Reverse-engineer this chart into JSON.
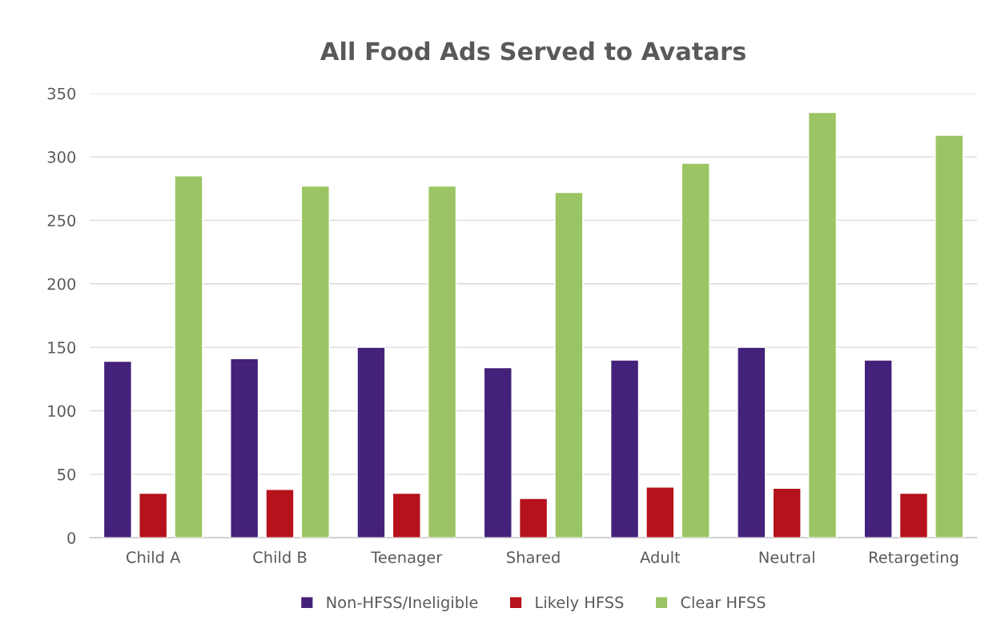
{
  "chart_data": {
    "type": "bar",
    "title": "All Food Ads Served to Avatars",
    "categories": [
      "Child A",
      "Child B",
      "Teenager",
      "Shared",
      "Adult",
      "Neutral",
      "Retargeting"
    ],
    "series": [
      {
        "name": "Non-HFSS/Ineligible",
        "color": "#44217a",
        "values": [
          139,
          141,
          150,
          134,
          140,
          150,
          140
        ]
      },
      {
        "name": "Likely HFSS",
        "color": "#b5121b",
        "values": [
          35,
          38,
          35,
          31,
          40,
          39,
          35
        ]
      },
      {
        "name": "Clear HFSS",
        "color": "#9bc564",
        "values": [
          285,
          277,
          277,
          272,
          295,
          335,
          317
        ]
      }
    ],
    "ylim": [
      0,
      350
    ],
    "yticks": [
      0,
      50,
      100,
      150,
      200,
      250,
      300,
      350
    ],
    "grid": "y",
    "legend": "bottom"
  }
}
